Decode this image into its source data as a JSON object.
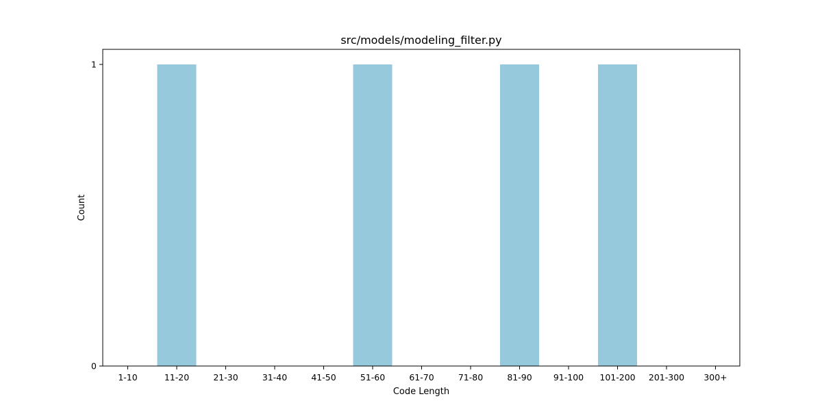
{
  "chart_data": {
    "type": "bar",
    "title": "src/models/modeling_filter.py",
    "xlabel": "Code Length",
    "ylabel": "Count",
    "categories": [
      "1-10",
      "11-20",
      "21-30",
      "31-40",
      "41-50",
      "51-60",
      "61-70",
      "71-80",
      "81-90",
      "91-100",
      "101-200",
      "201-300",
      "300+"
    ],
    "values": [
      0,
      1,
      0,
      0,
      0,
      1,
      0,
      0,
      1,
      0,
      1,
      0,
      0
    ],
    "ylim": [
      0,
      1
    ],
    "yticks": [
      "0",
      "1"
    ],
    "grid": false,
    "legend": "none",
    "bar_color": "#96c9dc"
  }
}
